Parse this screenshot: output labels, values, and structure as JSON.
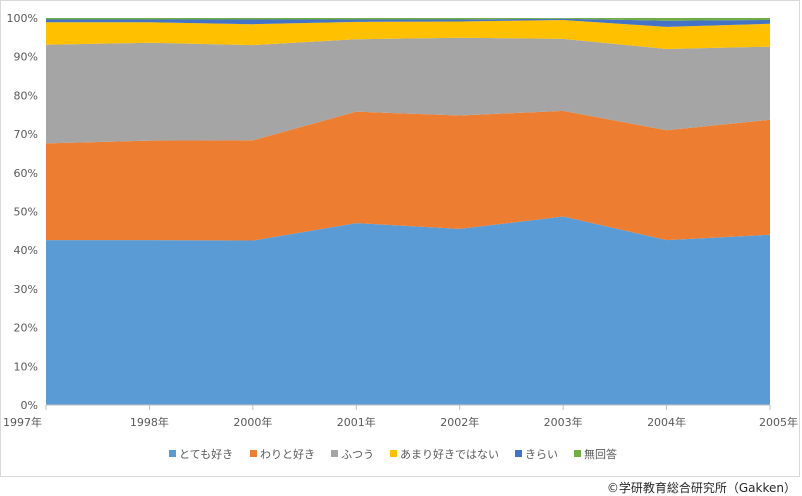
{
  "chart_data": {
    "type": "area",
    "stacked": true,
    "normalized_percent": true,
    "title": "",
    "xlabel": "",
    "ylabel": "",
    "x": [
      "1997年",
      "1998年",
      "2000年",
      "2001年",
      "2002年",
      "2003年",
      "2004年",
      "2005年"
    ],
    "ylim": [
      0,
      100
    ],
    "y_ticks": [
      "0%",
      "10%",
      "20%",
      "30%",
      "40%",
      "50%",
      "60%",
      "70%",
      "80%",
      "90%",
      "100%"
    ],
    "grid": false,
    "legend_position": "bottom",
    "series": [
      {
        "name": "とても好き",
        "color": "#5b9bd5",
        "values": [
          42.6,
          42.6,
          42.5,
          47.0,
          45.5,
          48.7,
          42.6,
          44.0
        ]
      },
      {
        "name": "わりと好き",
        "color": "#ed7d31",
        "values": [
          25.0,
          25.7,
          25.9,
          28.8,
          29.3,
          27.3,
          28.4,
          29.7
        ]
      },
      {
        "name": "ふつう",
        "color": "#a5a5a5",
        "values": [
          25.5,
          25.3,
          24.6,
          18.7,
          20.1,
          18.6,
          21.0,
          18.9
        ]
      },
      {
        "name": "あまり好きではない",
        "color": "#ffc000",
        "values": [
          5.8,
          5.3,
          5.4,
          4.5,
          4.2,
          4.9,
          5.7,
          5.9
        ]
      },
      {
        "name": "きらい",
        "color": "#4472c4",
        "values": [
          0.7,
          0.7,
          1.2,
          0.6,
          0.5,
          0.3,
          1.6,
          1.0
        ]
      },
      {
        "name": "無回答",
        "color": "#70ad47",
        "values": [
          0.4,
          0.4,
          0.4,
          0.4,
          0.4,
          0.2,
          0.7,
          0.5
        ]
      }
    ]
  },
  "source_note": "©学研教育総合研究所（Gakken）"
}
